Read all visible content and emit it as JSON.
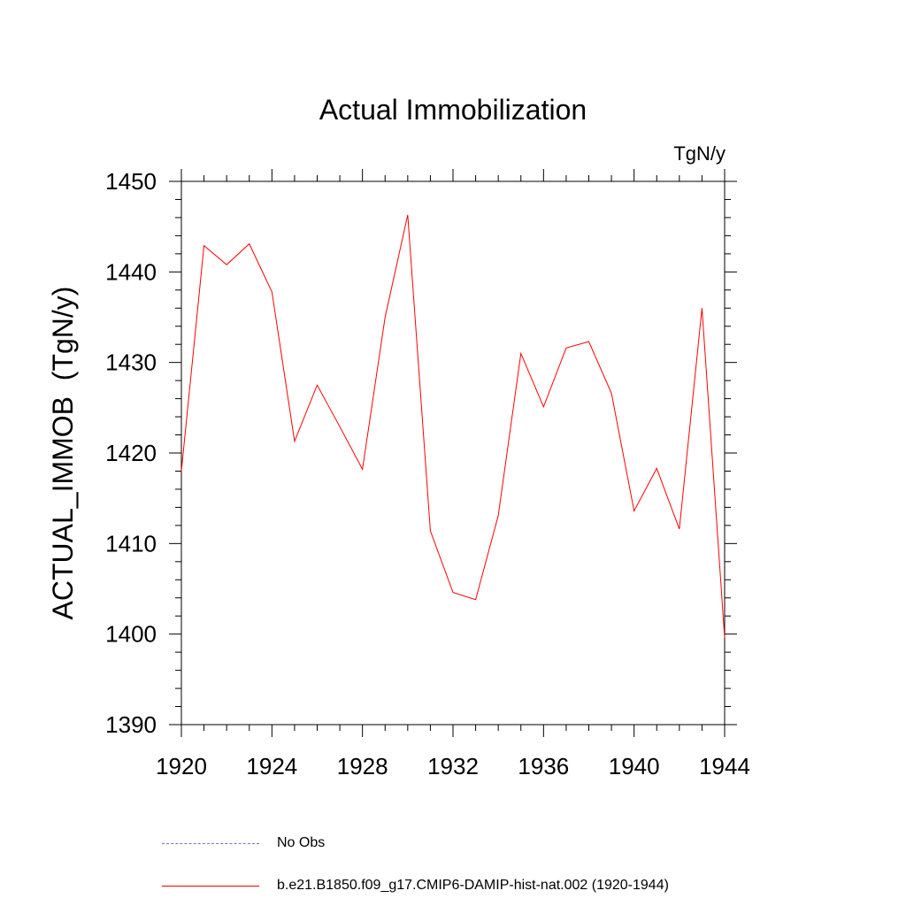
{
  "chart_data": {
    "type": "line",
    "title": "Actual Immobilization",
    "units": "TgN/y",
    "xlabel": "",
    "ylabel": "ACTUAL_IMMOB  (TgN/y)",
    "xlim": [
      1920,
      1944
    ],
    "ylim": [
      1390,
      1450
    ],
    "x_ticks": [
      "1920",
      "1924",
      "1928",
      "1932",
      "1936",
      "1940",
      "1944"
    ],
    "y_ticks": [
      "1390",
      "1400",
      "1410",
      "1420",
      "1430",
      "1440",
      "1450"
    ],
    "grid": false,
    "legend_position": "bottom",
    "series": [
      {
        "name": "No Obs",
        "color": "#7b6fd0",
        "style": "dashed",
        "x": [],
        "values": []
      },
      {
        "name": "b.e21.B1850.f09_g17.CMIP6-DAMIP-hist-nat.002 (1920-1944)",
        "color": "#ff0000",
        "style": "solid",
        "x": [
          1920,
          1921,
          1922,
          1923,
          1924,
          1925,
          1926,
          1927,
          1928,
          1929,
          1930,
          1931,
          1932,
          1933,
          1934,
          1935,
          1936,
          1937,
          1938,
          1939,
          1940,
          1941,
          1942,
          1943,
          1944
        ],
        "values": [
          1418.0,
          1442.9,
          1440.8,
          1443.1,
          1437.8,
          1421.3,
          1427.5,
          1422.9,
          1418.2,
          1435.0,
          1446.3,
          1411.4,
          1404.6,
          1403.8,
          1413.1,
          1431.0,
          1425.1,
          1431.6,
          1432.3,
          1426.6,
          1413.6,
          1418.3,
          1411.6,
          1436.0,
          1399.6
        ]
      }
    ]
  }
}
